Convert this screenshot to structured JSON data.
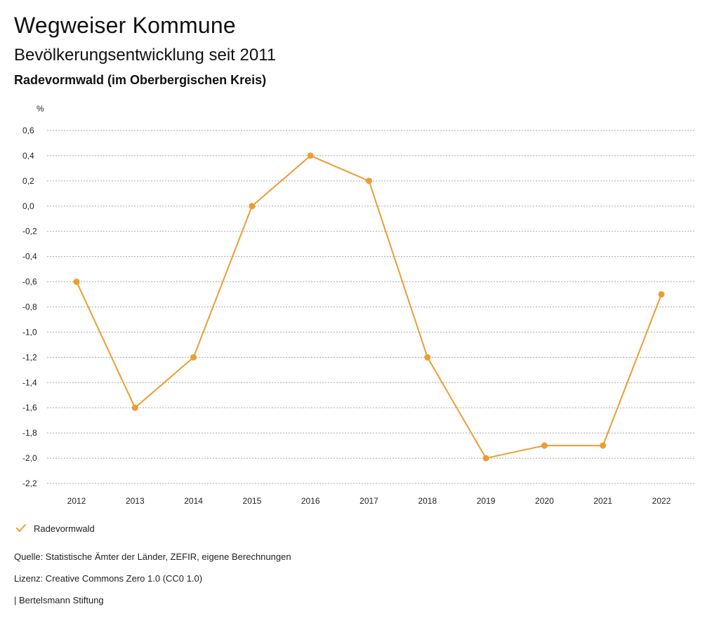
{
  "header": {
    "title": "Wegweiser Kommune",
    "subtitle": "Bevölkerungsentwicklung seit 2011",
    "region": "Radevormwald (im Oberbergischen Kreis)"
  },
  "chart_data": {
    "type": "line",
    "title": "Bevölkerungsentwicklung seit 2011",
    "ylabel": "%",
    "xlabel": "",
    "categories": [
      "2012",
      "2013",
      "2014",
      "2015",
      "2016",
      "2017",
      "2018",
      "2019",
      "2020",
      "2021",
      "2022"
    ],
    "series": [
      {
        "name": "Radevormwald",
        "values": [
          -0.6,
          -1.6,
          -1.2,
          0.0,
          0.4,
          0.2,
          -1.2,
          -2.0,
          -1.9,
          -1.9,
          -0.7
        ],
        "color": "#ec9d32"
      }
    ],
    "yticks": [
      0.6,
      0.4,
      0.2,
      0.0,
      -0.2,
      -0.4,
      -0.6,
      -0.8,
      -1.0,
      -1.2,
      -1.4,
      -1.6,
      -1.8,
      -2.0,
      -2.2
    ],
    "ytick_labels": [
      "0,6",
      "0,4",
      "0,2",
      "0,0",
      "-0,2",
      "-0,4",
      "-0,6",
      "-0,8",
      "-1,0",
      "-1,2",
      "-1,4",
      "-1,6",
      "-1,8",
      "-2,0",
      "-2,2"
    ],
    "ylim": [
      -2.2,
      0.6
    ],
    "grid": true,
    "legend_position": "bottom-left"
  },
  "legend": {
    "label": "Radevormwald",
    "color": "#ec9d32"
  },
  "footer": {
    "source": "Quelle: Statistische Ämter der Länder, ZEFIR, eigene Berechnungen",
    "license": "Lizenz: Creative Commons Zero 1.0 (CC0 1.0)",
    "publisher": "| Bertelsmann Stiftung"
  }
}
